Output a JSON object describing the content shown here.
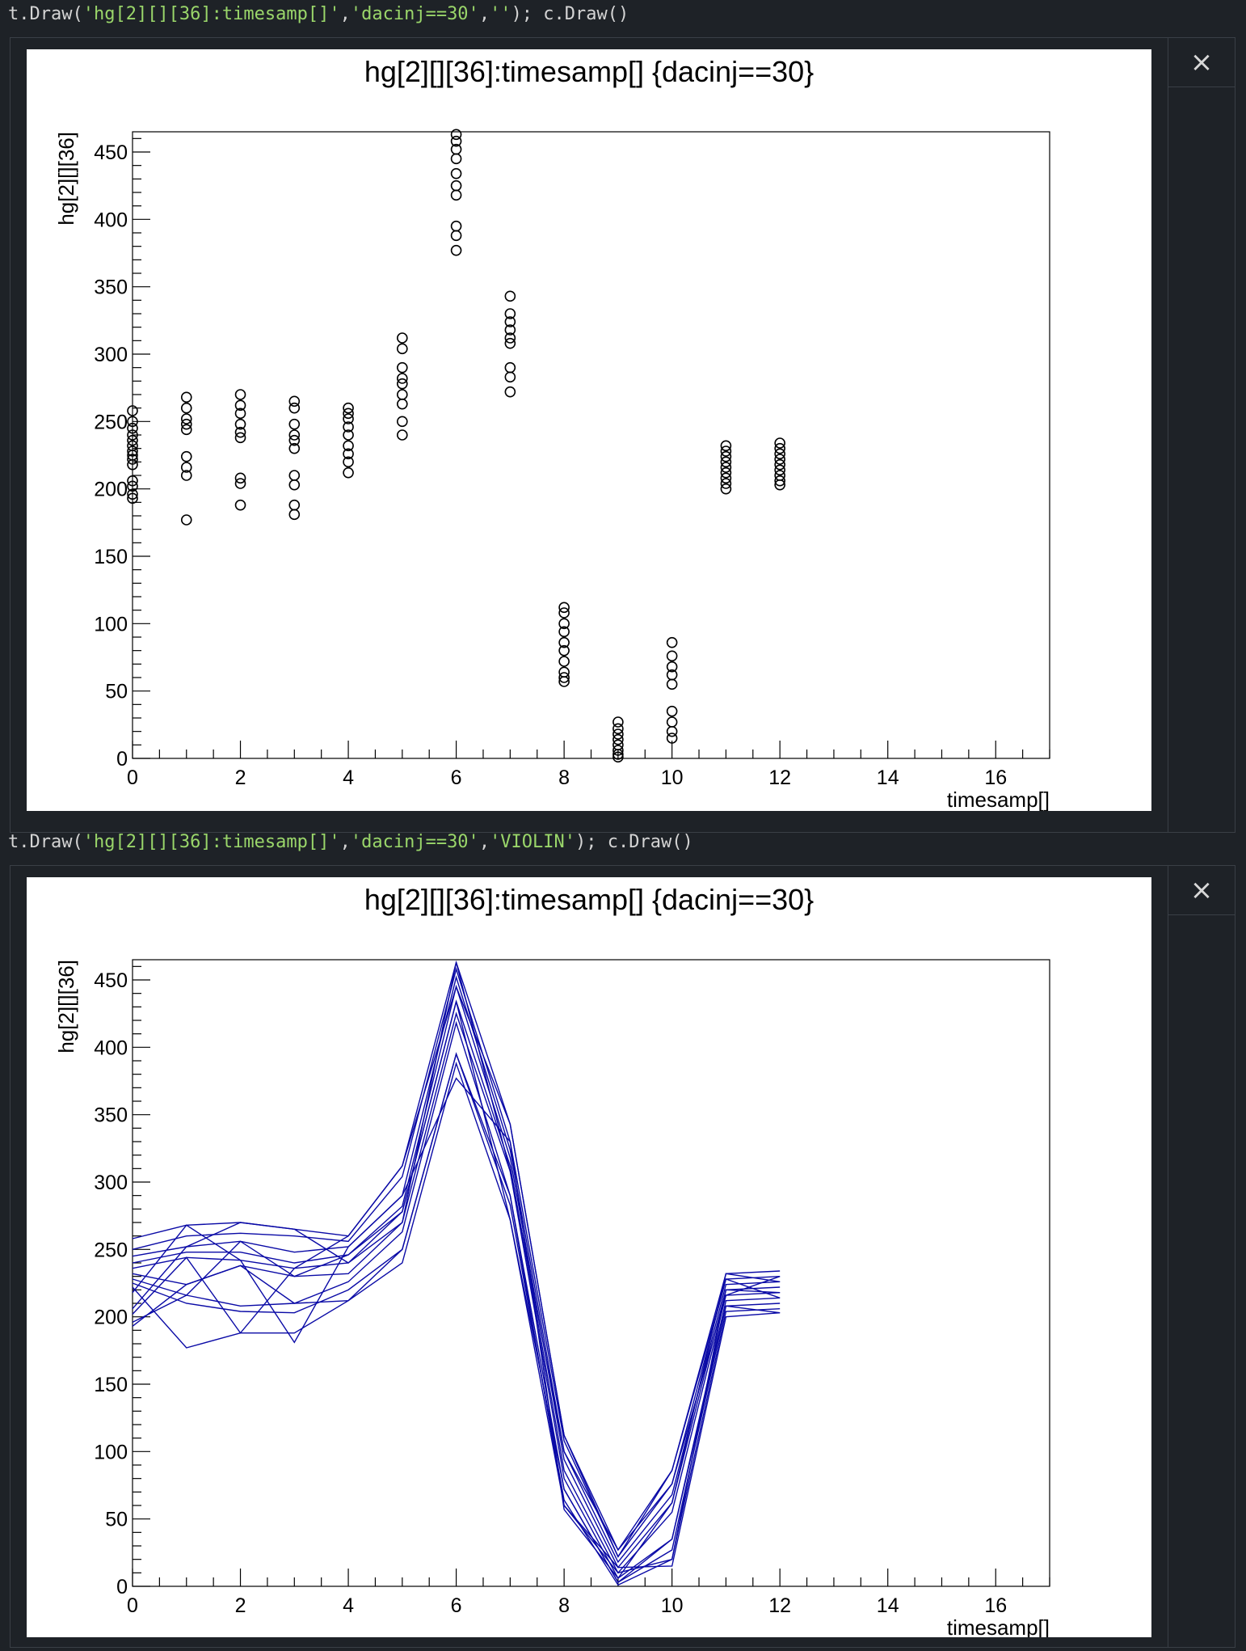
{
  "cells": [
    {
      "code_prefix": "t.Draw(",
      "code_arg1": "'hg[2][][36]:timesamp[]'",
      "code_arg2": "'dacinj==30'",
      "code_arg3": "''",
      "code_suffix": "); c.Draw()",
      "close_label": "×",
      "colors": {
        "marker": "#000000"
      }
    },
    {
      "code_prefix": "t.Draw(",
      "code_arg1": "'hg[2][][36]:timesamp[]'",
      "code_arg2": "'dacinj==30'",
      "code_arg3": "'VIOLIN'",
      "code_suffix": "); c.Draw()",
      "close_label": "×",
      "colors": {
        "line": "#0a0aa6"
      }
    }
  ],
  "chart_data": [
    {
      "type": "scatter",
      "title": "hg[2][][36]:timesamp[] {dacinj==30}",
      "xlabel": "timesamp[]",
      "ylabel": "hg[2][][36]",
      "xlim": [
        0,
        17
      ],
      "ylim": [
        0,
        465
      ],
      "x_ticks": [
        0,
        2,
        4,
        6,
        8,
        10,
        12,
        14,
        16
      ],
      "y_ticks": [
        0,
        50,
        100,
        150,
        200,
        250,
        300,
        350,
        400,
        450
      ],
      "grid": false,
      "marker": "open-circle",
      "points": {
        "0": [
          258,
          250,
          245,
          240,
          236,
          232,
          228,
          225,
          222,
          218,
          206,
          202,
          196,
          193
        ],
        "1": [
          268,
          260,
          252,
          248,
          244,
          224,
          216,
          210,
          177
        ],
        "2": [
          270,
          262,
          256,
          248,
          242,
          238,
          208,
          204,
          188
        ],
        "3": [
          265,
          260,
          248,
          240,
          236,
          230,
          210,
          203,
          188,
          181
        ],
        "4": [
          260,
          256,
          252,
          246,
          240,
          232,
          226,
          220,
          212
        ],
        "5": [
          312,
          304,
          290,
          282,
          278,
          270,
          263,
          250,
          240
        ],
        "6": [
          463,
          458,
          452,
          445,
          434,
          425,
          418,
          395,
          388,
          377
        ],
        "7": [
          343,
          330,
          324,
          318,
          312,
          308,
          290,
          283,
          272
        ],
        "8": [
          112,
          108,
          100,
          94,
          86,
          80,
          72,
          64,
          60,
          57
        ],
        "9": [
          27,
          22,
          18,
          14,
          10,
          6,
          3,
          1
        ],
        "10": [
          86,
          76,
          68,
          62,
          55,
          35,
          27,
          20,
          15
        ],
        "11": [
          232,
          228,
          224,
          220,
          216,
          212,
          208,
          204,
          200
        ],
        "12": [
          234,
          230,
          226,
          222,
          218,
          214,
          210,
          206,
          203
        ]
      }
    },
    {
      "type": "line",
      "title": "hg[2][][36]:timesamp[] {dacinj==30}",
      "xlabel": "timesamp[]",
      "ylabel": "hg[2][][36]",
      "xlim": [
        0,
        17
      ],
      "ylim": [
        0,
        465
      ],
      "x_ticks": [
        0,
        2,
        4,
        6,
        8,
        10,
        12,
        14,
        16
      ],
      "y_ticks": [
        0,
        50,
        100,
        150,
        200,
        250,
        300,
        350,
        400,
        450
      ],
      "grid": false,
      "x": [
        0,
        1,
        2,
        3,
        4,
        5,
        6,
        7,
        8,
        9,
        10,
        11,
        12
      ],
      "series": [
        {
          "values": [
            258,
            268,
            270,
            265,
            260,
            312,
            463,
            343,
            112,
            27,
            86,
            232,
            234
          ]
        },
        {
          "values": [
            250,
            260,
            262,
            260,
            256,
            304,
            458,
            330,
            108,
            22,
            76,
            228,
            230
          ]
        },
        {
          "values": [
            245,
            252,
            256,
            248,
            252,
            290,
            452,
            324,
            100,
            18,
            68,
            224,
            226
          ]
        },
        {
          "values": [
            240,
            248,
            248,
            240,
            246,
            282,
            445,
            318,
            94,
            14,
            62,
            220,
            222
          ]
        },
        {
          "values": [
            236,
            244,
            242,
            236,
            240,
            278,
            434,
            312,
            86,
            10,
            55,
            216,
            218
          ]
        },
        {
          "values": [
            232,
            224,
            238,
            230,
            232,
            270,
            425,
            308,
            80,
            6,
            35,
            212,
            214
          ]
        },
        {
          "values": [
            228,
            216,
            208,
            210,
            226,
            263,
            418,
            290,
            72,
            3,
            27,
            208,
            210
          ]
        },
        {
          "values": [
            225,
            210,
            204,
            203,
            220,
            250,
            395,
            283,
            64,
            1,
            20,
            204,
            206
          ]
        },
        {
          "values": [
            222,
            177,
            188,
            188,
            212,
            240,
            388,
            272,
            60,
            14,
            15,
            200,
            203
          ]
        },
        {
          "values": [
            218,
            268,
            242,
            181,
            252,
            290,
            377,
            330,
            57,
            6,
            62,
            232,
            226
          ]
        },
        {
          "values": [
            206,
            252,
            270,
            265,
            240,
            270,
            463,
            308,
            100,
            27,
            76,
            216,
            230
          ]
        },
        {
          "values": [
            202,
            244,
            188,
            236,
            260,
            312,
            445,
            343,
            112,
            22,
            86,
            228,
            214
          ]
        },
        {
          "values": [
            196,
            216,
            256,
            230,
            246,
            278,
            434,
            272,
            72,
            3,
            35,
            208,
            203
          ]
        },
        {
          "values": [
            193,
            224,
            238,
            210,
            212,
            250,
            395,
            290,
            60,
            10,
            20,
            220,
            218
          ]
        }
      ]
    }
  ]
}
